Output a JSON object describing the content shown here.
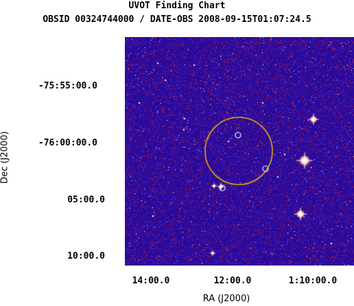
{
  "title": "UVOT Finding Chart",
  "subtitle": "OBSID 00324744000 / DATE-OBS 2008-09-15T01:07:24.5",
  "axes": {
    "xlabel": "RA (J2000)",
    "ylabel": "Dec (J2000)",
    "dec_ticks": [
      "-75:55:00.0",
      "-76:00:00.0",
      "05:00.0",
      "10:00.0"
    ],
    "ra_ticks": [
      "14:00.0",
      "12:00.0",
      "1:10:00.0"
    ]
  },
  "colors": {
    "background": "#2a0a9a",
    "noise_red": "#d8202a",
    "noise_blue": "#3c28e0",
    "source_circle": "#e8b400",
    "marker_circle": "#ffffff",
    "star": "#ffffff"
  }
}
